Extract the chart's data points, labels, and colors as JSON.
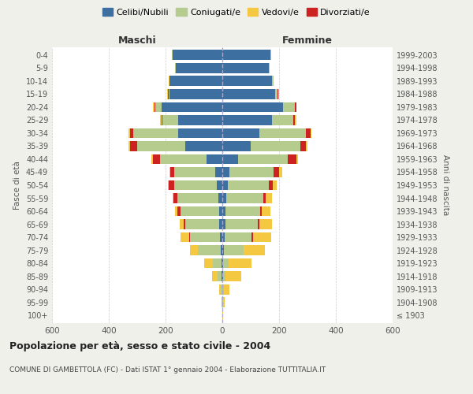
{
  "age_groups": [
    "100+",
    "95-99",
    "90-94",
    "85-89",
    "80-84",
    "75-79",
    "70-74",
    "65-69",
    "60-64",
    "55-59",
    "50-54",
    "45-49",
    "40-44",
    "35-39",
    "30-34",
    "25-29",
    "20-24",
    "15-19",
    "10-14",
    "5-9",
    "0-4"
  ],
  "birth_years": [
    "≤ 1903",
    "1904-1908",
    "1909-1913",
    "1914-1918",
    "1919-1923",
    "1924-1928",
    "1929-1933",
    "1934-1938",
    "1939-1943",
    "1944-1948",
    "1949-1953",
    "1954-1958",
    "1959-1963",
    "1964-1968",
    "1969-1973",
    "1974-1978",
    "1979-1983",
    "1984-1988",
    "1989-1993",
    "1994-1998",
    "1999-2003"
  ],
  "male": {
    "celibi": [
      0,
      0,
      0,
      2,
      3,
      5,
      8,
      10,
      12,
      14,
      20,
      25,
      55,
      130,
      155,
      155,
      215,
      185,
      185,
      165,
      175
    ],
    "coniugati": [
      0,
      2,
      5,
      15,
      30,
      80,
      105,
      120,
      135,
      145,
      150,
      145,
      165,
      170,
      160,
      55,
      20,
      5,
      2,
      2,
      2
    ],
    "vedovi": [
      0,
      2,
      5,
      20,
      30,
      30,
      30,
      15,
      10,
      5,
      5,
      5,
      5,
      5,
      5,
      5,
      5,
      2,
      2,
      0,
      0
    ],
    "divorziati": [
      0,
      0,
      0,
      0,
      0,
      0,
      5,
      5,
      10,
      12,
      18,
      12,
      25,
      25,
      10,
      5,
      5,
      2,
      0,
      0,
      0
    ]
  },
  "female": {
    "nubili": [
      0,
      0,
      0,
      2,
      3,
      5,
      8,
      10,
      12,
      14,
      20,
      25,
      55,
      100,
      130,
      175,
      215,
      185,
      175,
      165,
      170
    ],
    "coniugate": [
      0,
      2,
      5,
      10,
      20,
      70,
      95,
      115,
      120,
      130,
      145,
      155,
      175,
      175,
      165,
      75,
      40,
      10,
      5,
      2,
      2
    ],
    "vedove": [
      2,
      5,
      20,
      55,
      80,
      75,
      65,
      45,
      30,
      20,
      15,
      10,
      8,
      5,
      5,
      5,
      2,
      2,
      0,
      0,
      0
    ],
    "divorziate": [
      0,
      0,
      0,
      0,
      0,
      0,
      5,
      5,
      8,
      10,
      12,
      20,
      30,
      20,
      15,
      5,
      5,
      2,
      0,
      0,
      0
    ]
  },
  "colors": {
    "celibi": "#3d6fa0",
    "coniugati": "#b5cc8e",
    "vedovi": "#f5c842",
    "divorziati": "#cc2222"
  },
  "title": "Popolazione per età, sesso e stato civile - 2004",
  "subtitle": "COMUNE DI GAMBETTOLA (FC) - Dati ISTAT 1° gennaio 2004 - Elaborazione TUTTITALIA.IT",
  "ylabel_left": "Fasce di età",
  "ylabel_right": "Anni di nascita",
  "xlim": 600,
  "bg_color": "#f0f0eb",
  "plot_bg": "#ffffff"
}
